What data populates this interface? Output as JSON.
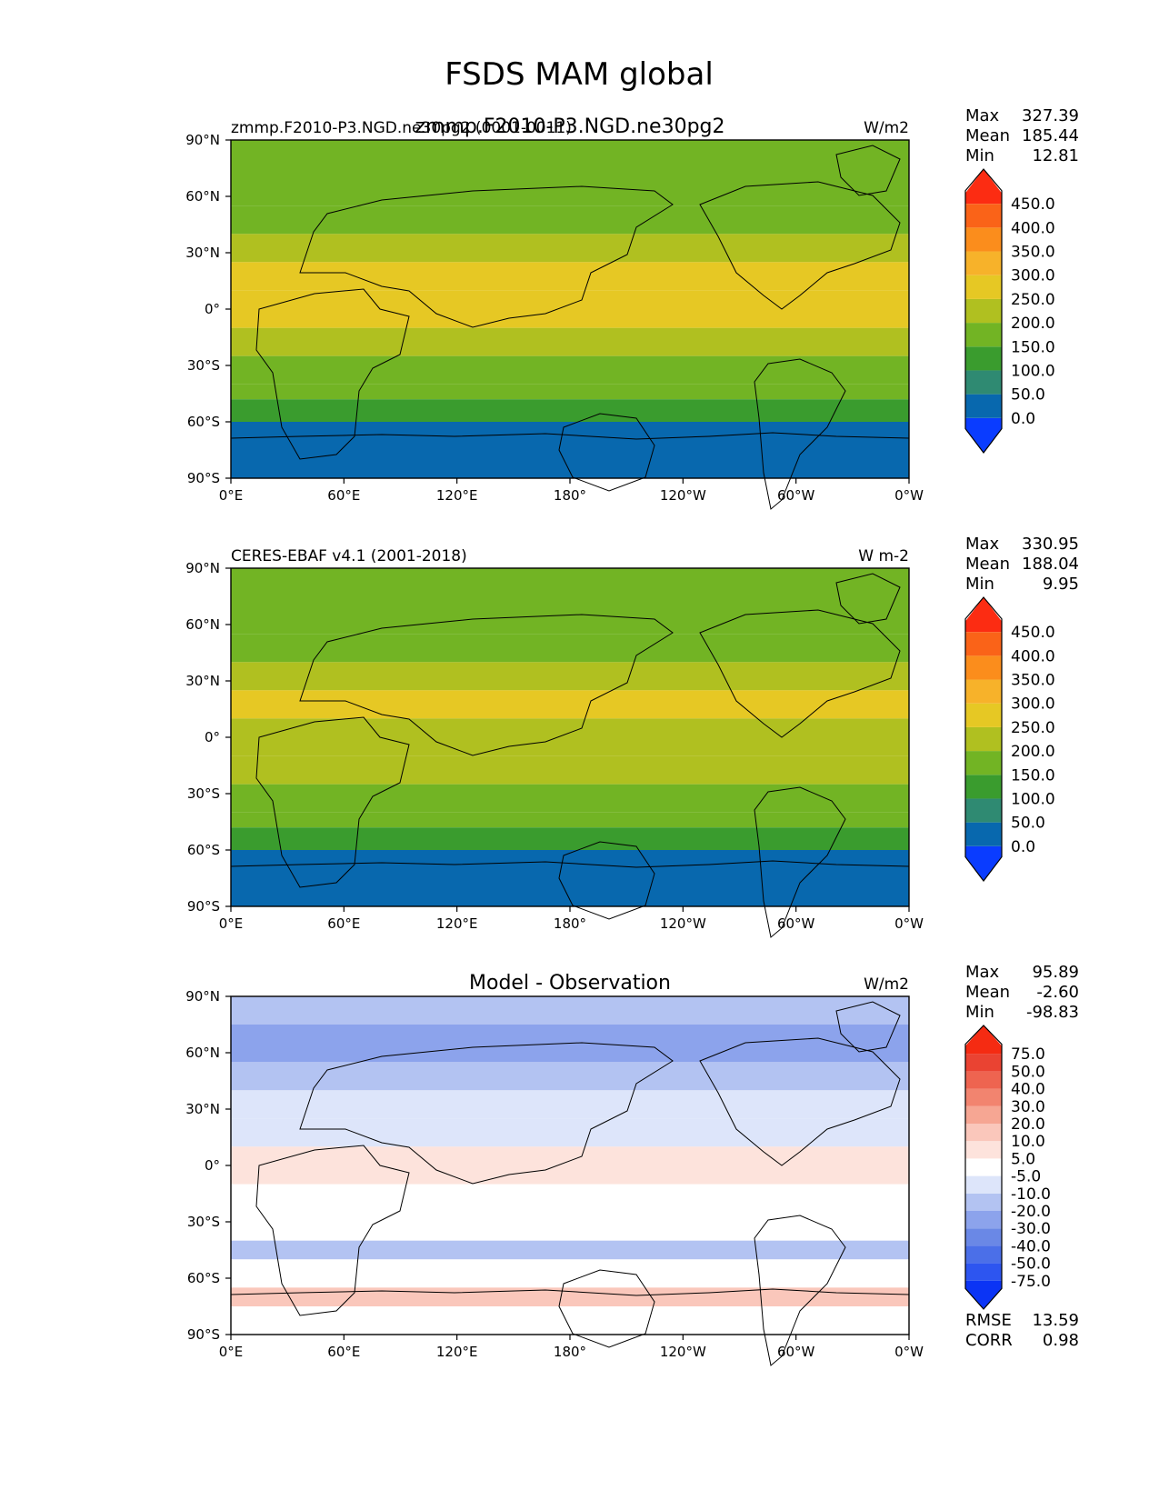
{
  "figure": {
    "title": "FSDS MAM global"
  },
  "chart_data": [
    {
      "type": "heatmap",
      "id": "model",
      "title_left": "zmmp.F2010-P3.NGD.ne30pg2 (0001-0011)",
      "title_center": "zmmp.F2010-P3.NGD.ne30pg2",
      "units": "W/m2",
      "stats": {
        "max_label": "Max",
        "max": "327.39",
        "mean_label": "Mean",
        "mean": "185.44",
        "min_label": "Min",
        "min": "12.81"
      },
      "colorbar": {
        "levels": [
          "0.0",
          "50.0",
          "100.0",
          "150.0",
          "200.0",
          "250.0",
          "300.0",
          "350.0",
          "400.0",
          "450.0"
        ],
        "colors": [
          "#0a3cff",
          "#0868ae",
          "#2f8a72",
          "#3a9c2e",
          "#72b424",
          "#b0c020",
          "#e6c824",
          "#f7b22a",
          "#fb8d1c",
          "#fa6318",
          "#fc2c12"
        ]
      },
      "bands": [
        {
          "lat": [
            75,
            90
          ],
          "value": 170
        },
        {
          "lat": [
            55,
            75
          ],
          "value": 150
        },
        {
          "lat": [
            40,
            55
          ],
          "value": 175
        },
        {
          "lat": [
            25,
            40
          ],
          "value": 215
        },
        {
          "lat": [
            10,
            25
          ],
          "value": 265
        },
        {
          "lat": [
            -10,
            10
          ],
          "value": 255
        },
        {
          "lat": [
            -25,
            -10
          ],
          "value": 230
        },
        {
          "lat": [
            -40,
            -25
          ],
          "value": 185
        },
        {
          "lat": [
            -48,
            -40
          ],
          "value": 150
        },
        {
          "lat": [
            -60,
            -48
          ],
          "value": 110
        },
        {
          "lat": [
            -90,
            -60
          ],
          "value": 35
        }
      ]
    },
    {
      "type": "heatmap",
      "id": "obs",
      "title_left": "CERES-EBAF v4.1 (2001-2018)",
      "title_center": "",
      "units": "W m-2",
      "stats": {
        "max_label": "Max",
        "max": "330.95",
        "mean_label": "Mean",
        "mean": "188.04",
        "min_label": "Min",
        "min": "9.95"
      },
      "colorbar": {
        "levels": [
          "0.0",
          "50.0",
          "100.0",
          "150.0",
          "200.0",
          "250.0",
          "300.0",
          "350.0",
          "400.0",
          "450.0"
        ],
        "colors": [
          "#0a3cff",
          "#0868ae",
          "#2f8a72",
          "#3a9c2e",
          "#72b424",
          "#b0c020",
          "#e6c824",
          "#f7b22a",
          "#fb8d1c",
          "#fa6318",
          "#fc2c12"
        ]
      },
      "bands": [
        {
          "lat": [
            75,
            90
          ],
          "value": 175
        },
        {
          "lat": [
            55,
            75
          ],
          "value": 160
        },
        {
          "lat": [
            40,
            55
          ],
          "value": 185
        },
        {
          "lat": [
            25,
            40
          ],
          "value": 225
        },
        {
          "lat": [
            10,
            25
          ],
          "value": 270
        },
        {
          "lat": [
            -10,
            10
          ],
          "value": 245
        },
        {
          "lat": [
            -25,
            -10
          ],
          "value": 235
        },
        {
          "lat": [
            -40,
            -25
          ],
          "value": 190
        },
        {
          "lat": [
            -48,
            -40
          ],
          "value": 150
        },
        {
          "lat": [
            -60,
            -48
          ],
          "value": 110
        },
        {
          "lat": [
            -90,
            -60
          ],
          "value": 35
        }
      ]
    },
    {
      "type": "heatmap",
      "id": "diff",
      "title_left": "",
      "title_center": "Model - Observation",
      "units": "W/m2",
      "stats": {
        "max_label": "Max",
        "max": "95.89",
        "mean_label": "Mean",
        "mean": "-2.60",
        "min_label": "Min",
        "min": "-98.83"
      },
      "colorbar": {
        "levels": [
          "-75.0",
          "-50.0",
          "-40.0",
          "-30.0",
          "-20.0",
          "-10.0",
          "-5.0",
          "5.0",
          "10.0",
          "20.0",
          "30.0",
          "40.0",
          "50.0",
          "75.0"
        ],
        "colors": [
          "#0b34f5",
          "#2d55f0",
          "#4b6fe8",
          "#6a88e6",
          "#8ca3ec",
          "#b3c3f2",
          "#dde5fa",
          "#ffffff",
          "#fde3dc",
          "#fac7bb",
          "#f6a693",
          "#f2846f",
          "#ee6450",
          "#ea4332",
          "#f52b12"
        ]
      },
      "bands": [
        {
          "lat": [
            75,
            90
          ],
          "value": -15
        },
        {
          "lat": [
            55,
            75
          ],
          "value": -25
        },
        {
          "lat": [
            40,
            55
          ],
          "value": -15
        },
        {
          "lat": [
            25,
            40
          ],
          "value": -8
        },
        {
          "lat": [
            10,
            25
          ],
          "value": -6
        },
        {
          "lat": [
            -10,
            10
          ],
          "value": 8
        },
        {
          "lat": [
            -25,
            -10
          ],
          "value": -3
        },
        {
          "lat": [
            -40,
            -25
          ],
          "value": -4
        },
        {
          "lat": [
            -50,
            -40
          ],
          "value": -12
        },
        {
          "lat": [
            -65,
            -50
          ],
          "value": 3
        },
        {
          "lat": [
            -75,
            -65
          ],
          "value": 12
        },
        {
          "lat": [
            -90,
            -75
          ],
          "value": 0
        }
      ],
      "metrics": {
        "rmse_label": "RMSE",
        "rmse": "13.59",
        "corr_label": "CORR",
        "corr": "0.98"
      }
    }
  ],
  "axes": {
    "x_ticks": [
      "0°E",
      "60°E",
      "120°E",
      "180°",
      "120°W",
      "60°W",
      "0°W"
    ],
    "x_values": [
      0,
      60,
      120,
      180,
      240,
      300,
      360
    ],
    "y_ticks": [
      "90°N",
      "60°N",
      "30°N",
      "0°",
      "30°S",
      "60°S",
      "90°S"
    ],
    "y_values": [
      90,
      60,
      30,
      0,
      -30,
      -60,
      -90
    ]
  }
}
